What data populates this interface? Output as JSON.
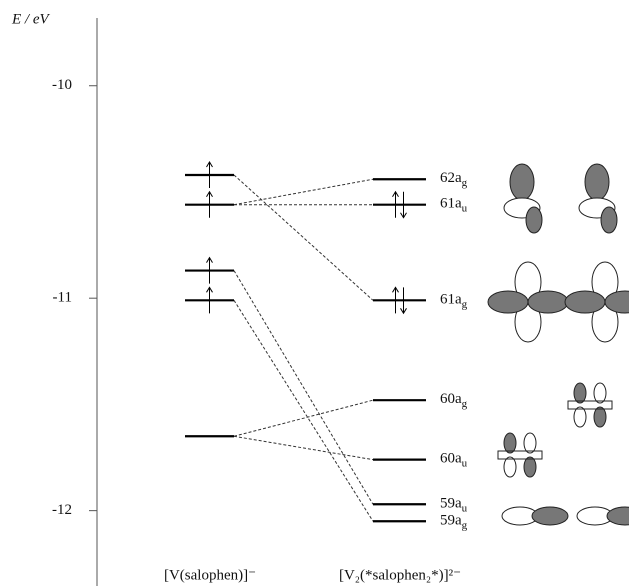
{
  "chart_data": {
    "type": "energy-level",
    "y_label": "E / eV",
    "ylim": [
      -12.35,
      -9.7
    ],
    "yticks": [
      -10,
      -11,
      -12
    ],
    "groups": [
      {
        "name": "[V(salophen)]⁻",
        "levels": [
          {
            "energy": -10.42,
            "electrons": 1
          },
          {
            "energy": -10.56,
            "electrons": 1
          },
          {
            "energy": -10.87,
            "electrons": 1
          },
          {
            "energy": -11.01,
            "electrons": 1
          },
          {
            "energy": -11.65,
            "electrons": 0
          }
        ]
      },
      {
        "name": "[V₂(*salophen₂*)]²⁻",
        "levels": [
          {
            "energy": -10.44,
            "electrons": 0,
            "label": "62a",
            "sub": "g"
          },
          {
            "energy": -10.56,
            "electrons": 2,
            "label": "61a",
            "sub": "u"
          },
          {
            "energy": -11.01,
            "electrons": 2,
            "label": "61a",
            "sub": "g"
          },
          {
            "energy": -11.48,
            "electrons": 0,
            "label": "60a",
            "sub": "g"
          },
          {
            "energy": -11.76,
            "electrons": 0,
            "label": "60a",
            "sub": "u"
          },
          {
            "energy": -11.97,
            "electrons": 0,
            "label": "59a",
            "sub": "u"
          },
          {
            "energy": -12.05,
            "electrons": 0,
            "label": "59a",
            "sub": "g"
          }
        ]
      }
    ],
    "connections": [
      [
        0,
        2
      ],
      [
        1,
        0
      ],
      [
        1,
        1
      ],
      [
        2,
        5
      ],
      [
        3,
        6
      ],
      [
        4,
        3
      ],
      [
        4,
        4
      ]
    ]
  }
}
